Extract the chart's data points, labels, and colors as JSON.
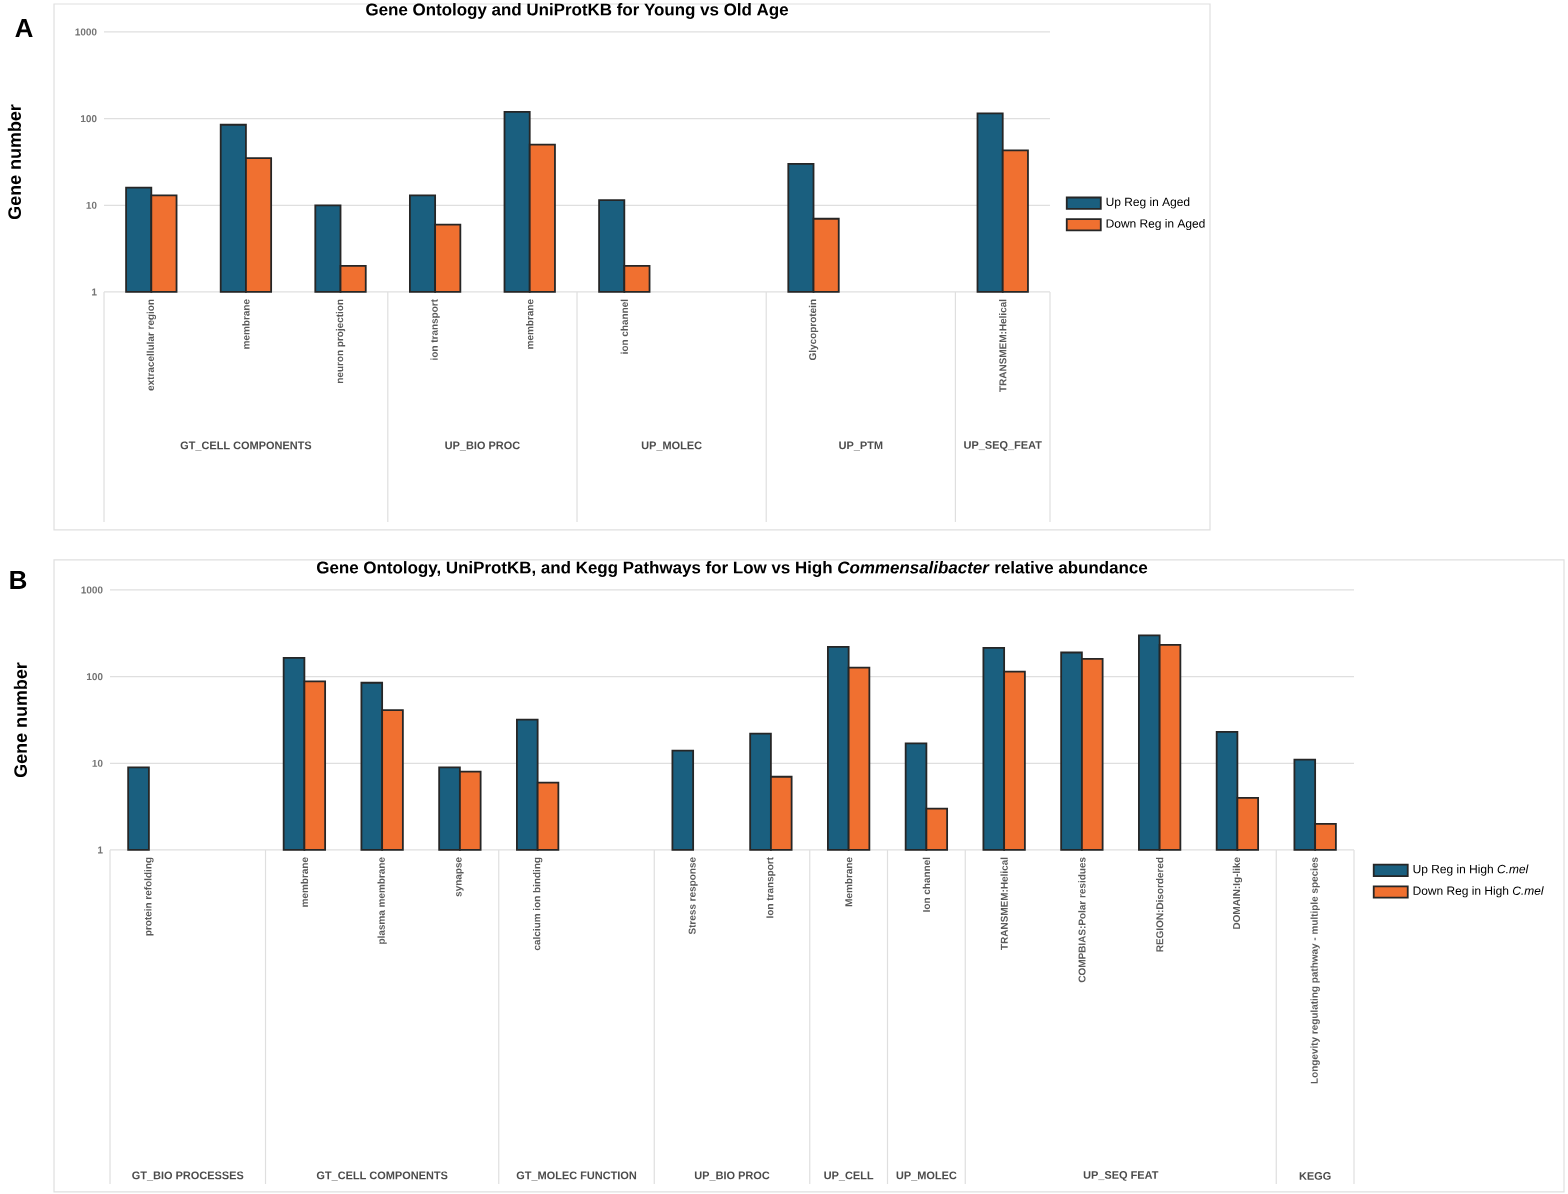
{
  "chart_data": [
    {
      "type": "bar",
      "title": "Gene Ontology and UniProtKB for Young vs Old Age",
      "ylabel": "Gene number",
      "categories": [
        "extracellular region",
        "membrane",
        "neuron projection",
        "ion transport",
        "membrane",
        "ion channel",
        null,
        "Glycoprotein",
        null,
        "TRANSMEM:Helical"
      ],
      "series": [
        {
          "name": "Up Reg in Aged",
          "color": "#1a5f7f",
          "values": [
            16,
            85,
            10,
            13,
            120,
            11.5,
            null,
            30,
            null,
            115
          ]
        },
        {
          "name": "Down Reg in Aged",
          "color": "#f07030",
          "values": [
            13,
            35,
            2,
            6,
            50,
            2,
            null,
            7,
            null,
            43
          ]
        }
      ],
      "ylim": [
        1,
        1000
      ],
      "yticks": [
        1,
        10,
        100,
        1000
      ],
      "log": true,
      "grid": "y",
      "legend": "right",
      "annotations": [
        "A",
        "GT_CELL COMPONENTS",
        "UP_BIO PROC",
        "UP_MOLEC",
        "UP_PTM",
        "UP_SEQ_FEAT"
      ]
    },
    {
      "type": "bar",
      "title": "Gene Ontology, UniProtKB, and Kegg Pathways for Low vs High *Commensalibacter* relative abundance",
      "ylabel": "Gene number",
      "categories": [
        "protein refolding",
        null,
        "membrane",
        "plasma membrane",
        "synapse",
        "calcium ion binding",
        null,
        "Stress response",
        "Ion transport",
        "Membrane",
        "Ion channel",
        "TRANSMEM:Helical",
        "COMPBIAS:Polar residues",
        "REGION:Disordered",
        "DOMAIN:Ig-like",
        "Longevity regulating pathway - multiple species"
      ],
      "series": [
        {
          "name": "Up Reg in High *C.mel*",
          "color": "#1a5f7f",
          "values": [
            9,
            null,
            165,
            85,
            9,
            32,
            null,
            14,
            22,
            220,
            17,
            215,
            190,
            300,
            23,
            11
          ]
        },
        {
          "name": "Down Reg in High *C.mel*",
          "color": "#f07030",
          "values": [
            null,
            null,
            88,
            41,
            8,
            6,
            null,
            null,
            7,
            127,
            3,
            114,
            160,
            233,
            4,
            2
          ]
        }
      ],
      "ylim": [
        1,
        1000
      ],
      "yticks": [
        1,
        10,
        100,
        1000
      ],
      "log": true,
      "grid": "y",
      "legend": "right",
      "annotations": [
        "B",
        "GT_BIO PROCESSES",
        "GT_CELL COMPONENTS",
        "GT_MOLEC FUNCTION",
        "UP_BIO PROC",
        "UP_CELL",
        "UP_MOLEC",
        "UP_SEQ FEAT",
        "KEGG"
      ]
    }
  ]
}
